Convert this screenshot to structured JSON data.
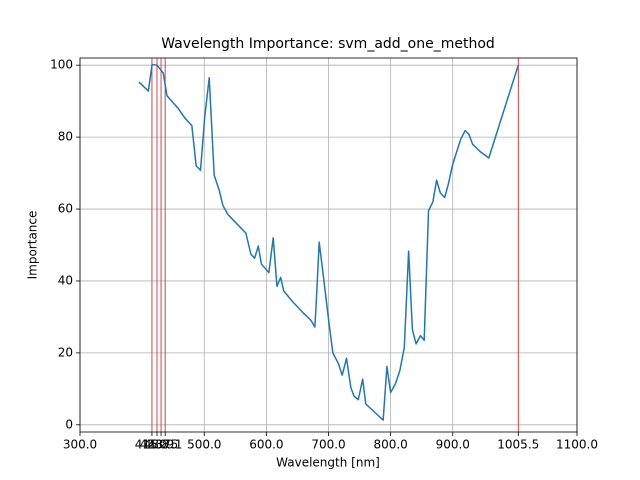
{
  "chart_data": {
    "type": "line",
    "title": "Wavelength Importance: svm_add_one_method",
    "x_label": "Wavelength [nm]",
    "y_label": "Importance",
    "x": [
      395,
      410,
      416,
      424,
      434,
      440,
      458,
      468,
      480,
      487,
      494,
      501,
      508,
      516,
      524,
      530,
      538,
      567,
      575,
      581,
      587,
      592,
      604,
      611,
      617,
      623,
      628,
      642,
      660,
      672,
      678,
      680,
      685,
      692,
      701,
      707,
      716,
      722,
      729,
      736,
      741,
      748,
      755,
      760,
      768,
      778,
      788,
      794,
      800,
      808,
      815,
      822,
      829,
      835,
      841,
      848,
      854,
      861,
      868,
      874,
      880,
      887,
      893,
      900,
      913,
      920,
      926,
      932,
      944,
      958,
      1005.5
    ],
    "series": [
      {
        "name": "Importance",
        "color": "#1f77b4",
        "values": [
          95.3,
          92.8,
          100.2,
          100,
          97.8,
          91.5,
          88,
          85.5,
          83.2,
          72,
          70.8,
          86,
          96.5,
          69.4,
          65.3,
          61,
          58.5,
          53.3,
          47.5,
          46.3,
          49.7,
          44.7,
          42.3,
          52,
          38.5,
          41,
          37.2,
          34.3,
          31,
          29,
          27.2,
          33,
          50.8,
          41,
          28,
          20,
          17,
          13.8,
          18.5,
          10.3,
          8,
          7,
          12.7,
          5.8,
          4.5,
          2.9,
          1.3,
          16.2,
          9,
          11.5,
          15.2,
          21.5,
          48.3,
          26.5,
          22.5,
          24.8,
          23.5,
          59.5,
          62,
          68,
          64.5,
          63.2,
          67,
          72.5,
          79.5,
          81.8,
          80.8,
          78,
          76,
          74.2,
          100
        ]
      }
    ],
    "selected_wavelengths": [
      415.8,
      423.9,
      430.5,
      437.1,
      1005.5
    ],
    "selected_color": "#d62728",
    "xlim": [
      300,
      1100
    ],
    "ylim": [
      -2,
      102
    ],
    "xticks": [
      {
        "value": 300,
        "label": "300.0"
      },
      {
        "value": 415.8,
        "label": "415.8"
      },
      {
        "value": 423.9,
        "label": "423.9"
      },
      {
        "value": 430.5,
        "label": "430.5"
      },
      {
        "value": 437.1,
        "label": "437.1"
      },
      {
        "value": 500,
        "label": "500.0"
      },
      {
        "value": 600,
        "label": "600.0"
      },
      {
        "value": 700,
        "label": "700.0"
      },
      {
        "value": 800,
        "label": "800.0"
      },
      {
        "value": 900,
        "label": "900.0"
      },
      {
        "value": 1005.5,
        "label": "1005.5"
      },
      {
        "value": 1100,
        "label": "1100.0"
      }
    ],
    "yticks": [
      0,
      20,
      40,
      60,
      80,
      100
    ],
    "grid": true
  }
}
